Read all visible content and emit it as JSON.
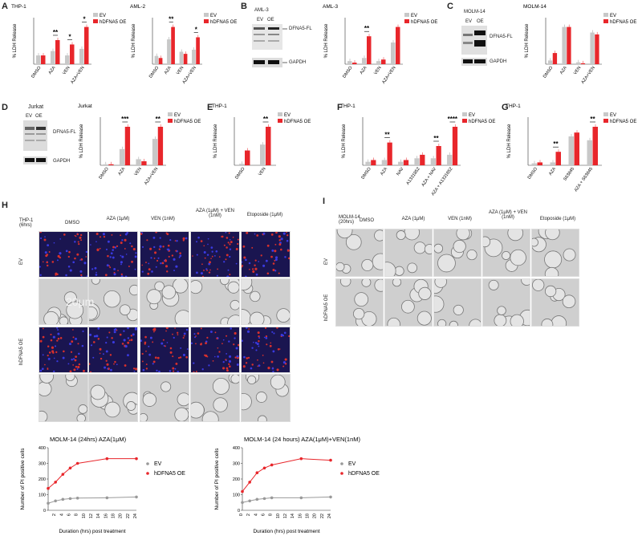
{
  "colors": {
    "ev": "#c8c8c8",
    "oe": "#e8262b",
    "sig": "#111111"
  },
  "panels": {
    "A": "A",
    "B": "B",
    "C": "C",
    "D": "D",
    "E": "E",
    "F": "F",
    "G": "G",
    "H": "H",
    "I": "I"
  },
  "legend": {
    "ev": "EV",
    "oe": "hDFNA5 OE"
  },
  "common": {
    "ylabel_ldh": "% LDH Release",
    "dfna5fl": "DFNA5-FL",
    "gapdh": "GAPDH",
    "ev_lane": "EV",
    "oe_lane": "OE"
  },
  "blots": {
    "B": "AML-3",
    "C": "MOLM-14",
    "D": "Jurkat"
  },
  "chart_data": [
    {
      "id": "A1",
      "type": "bar",
      "title": "THP-1",
      "categories": [
        "DMSO",
        "AZA",
        "VEN",
        "AZA+VEN"
      ],
      "series": [
        {
          "name": "EV",
          "values": [
            4,
            6,
            4,
            7
          ]
        },
        {
          "name": "hDFNA5 OE",
          "values": [
            4,
            11,
            9,
            17
          ]
        }
      ],
      "ylabel": "% LDH Release",
      "significance": [
        "",
        "**",
        "*",
        "*"
      ]
    },
    {
      "id": "A2",
      "type": "bar",
      "title": "AML-2",
      "categories": [
        "DMSO",
        "AZA",
        "VEN",
        "AZA+VEN"
      ],
      "series": [
        {
          "name": "EV",
          "values": [
            4,
            12,
            6,
            7
          ]
        },
        {
          "name": "hDFNA5 OE",
          "values": [
            3,
            18,
            5,
            13
          ]
        }
      ],
      "ylabel": "% LDH Release",
      "significance": [
        "",
        "**",
        "",
        "*"
      ]
    },
    {
      "id": "B",
      "type": "bar",
      "title": "AML-3",
      "categories": [
        "DMSO",
        "AZA",
        "VEN",
        "AZA+VEN"
      ],
      "series": [
        {
          "name": "EV",
          "values": [
            1,
            2,
            1,
            7
          ]
        },
        {
          "name": "hDFNA5 OE",
          "values": [
            0.5,
            9,
            1.5,
            12
          ]
        }
      ],
      "ylabel": "% LDH Release",
      "significance": [
        "",
        "**",
        "",
        ""
      ]
    },
    {
      "id": "C",
      "type": "bar",
      "title": "MOLM-14",
      "categories": [
        "DMSO",
        "AZA",
        "VEN",
        "AZA+VEN"
      ],
      "series": [
        {
          "name": "EV",
          "values": [
            2,
            20,
            1,
            17
          ]
        },
        {
          "name": "hDFNA5 OE",
          "values": [
            6,
            20,
            0.5,
            16
          ]
        }
      ],
      "ylabel": "% LDH Release",
      "significance": [
        "",
        "",
        "",
        ""
      ]
    },
    {
      "id": "D",
      "type": "bar",
      "title": "Jurkat",
      "categories": [
        "DMSO",
        "AZA",
        "VEN",
        "AZA+VEN"
      ],
      "series": [
        {
          "name": "EV",
          "values": [
            0.5,
            8,
            3,
            13
          ]
        },
        {
          "name": "hDFNA5 OE",
          "values": [
            0.5,
            19,
            2,
            19
          ]
        }
      ],
      "ylabel": "% LDH Release",
      "significance": [
        "",
        "***",
        "",
        "**"
      ]
    },
    {
      "id": "E",
      "type": "bar",
      "title": "THP-1",
      "categories": [
        "DMSO",
        "VEN"
      ],
      "series": [
        {
          "name": "EV",
          "values": [
            0.5,
            7
          ]
        },
        {
          "name": "hDFNA5 OE",
          "values": [
            5,
            13
          ]
        }
      ],
      "ylabel": "% LDH Release",
      "significance": [
        "",
        "**"
      ]
    },
    {
      "id": "F",
      "type": "bar",
      "title": "THP-1",
      "categories": [
        "DMSO",
        "AZA",
        "NAV",
        "A1331852",
        "AZA + NAV",
        "AZA + A1331852"
      ],
      "series": [
        {
          "name": "EV",
          "values": [
            2,
            3,
            2,
            4,
            4,
            6
          ]
        },
        {
          "name": "hDFNA5 OE",
          "values": [
            3,
            13,
            3,
            6,
            11,
            22
          ]
        }
      ],
      "ylabel": "% LDH Release",
      "significance": [
        "",
        "**",
        "",
        "",
        "**",
        "****"
      ]
    },
    {
      "id": "G",
      "type": "bar",
      "title": "THP-1",
      "categories": [
        "DMSO",
        "AZA",
        "S63845",
        "AZA + S63845"
      ],
      "series": [
        {
          "name": "EV",
          "values": [
            2,
            3,
            30,
            26
          ]
        },
        {
          "name": "hDFNA5 OE",
          "values": [
            3,
            14,
            34,
            40
          ]
        }
      ],
      "ylabel": "% LDH Release",
      "significance": [
        "",
        "**",
        "",
        "**"
      ]
    },
    {
      "id": "L1",
      "type": "line",
      "title": "MOLM-14 (24hrs) AZA(1μM)",
      "x": [
        0,
        2,
        4,
        6,
        8,
        16,
        24
      ],
      "series": [
        {
          "name": "EV",
          "values": [
            45,
            60,
            70,
            75,
            78,
            80,
            85
          ]
        },
        {
          "name": "hDFNA5 OE",
          "values": [
            140,
            180,
            230,
            270,
            300,
            330,
            330
          ]
        }
      ],
      "xlabel": "Duration (hrs) post treatment",
      "ylabel": "Number of PI positive cells",
      "ylim": [
        0,
        400
      ],
      "xticks": [
        "2",
        "4",
        "6",
        "8",
        "10",
        "12",
        "14",
        "16",
        "18",
        "20",
        "22",
        "24"
      ]
    },
    {
      "id": "L2",
      "type": "line",
      "title": "MOLM-14 (24 hours) AZA(1μM)+VEN(1nM)",
      "x": [
        0,
        2,
        4,
        6,
        8,
        16,
        24
      ],
      "series": [
        {
          "name": "EV",
          "values": [
            50,
            60,
            70,
            75,
            80,
            80,
            85
          ]
        },
        {
          "name": "hDFNA5 OE",
          "values": [
            120,
            180,
            240,
            270,
            290,
            330,
            320
          ]
        }
      ],
      "xlabel": "Duration (hrs) post treatment",
      "ylabel": "Number of PI positive cells",
      "ylim": [
        0,
        400
      ],
      "xticks": [
        "0",
        "2",
        "4",
        "6",
        "8",
        "10",
        "12",
        "14",
        "16",
        "18",
        "20",
        "22",
        "24"
      ]
    }
  ],
  "H": {
    "row_label": "THP-1 (6hrs)",
    "cols": [
      "DMSO",
      "AZA (1μM)",
      "VEN (1nM)",
      "AZA (1μM) + VEN (1nM)",
      "Etoposide (1μM)"
    ],
    "rows": [
      "EV",
      "hDFNA5 OE"
    ],
    "scale": "20μm"
  },
  "I": {
    "row_label": "MOLM-14 (20hrs)",
    "cols": [
      "DMSO",
      "AZA (1μM)",
      "VEN (1nM)",
      "AZA (1μM) + VEN (1nM)",
      "Etoposide (1μM)"
    ],
    "rows": [
      "EV",
      "hDFNA5 OE"
    ]
  }
}
